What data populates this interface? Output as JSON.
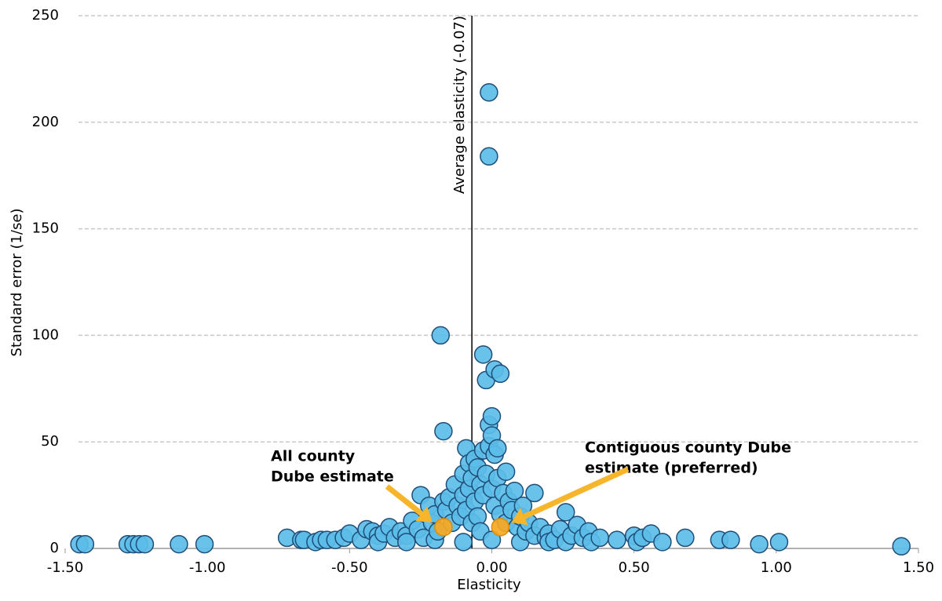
{
  "chart_data": {
    "type": "scatter",
    "x_label": "Elasticity",
    "y_label": "Standard error (1/se)",
    "xlim": [
      -1.5,
      1.5
    ],
    "ylim": [
      0,
      250
    ],
    "xticks": [
      {
        "value": -1.5,
        "label": "-1.50"
      },
      {
        "value": -1,
        "label": "-1.00"
      },
      {
        "value": -0.5,
        "label": "-0.50"
      },
      {
        "value": 0,
        "label": "0.00"
      },
      {
        "value": 0.5,
        "label": "0.50"
      },
      {
        "value": 1,
        "label": "1.00"
      },
      {
        "value": 1.5,
        "label": "1.50"
      }
    ],
    "yticks": [
      0,
      50,
      100,
      150,
      200,
      250
    ],
    "grid": true,
    "reference_line": {
      "value": -0.07,
      "label": "Average elasticity (-0.07)"
    },
    "series": [
      {
        "color": "#5bbde8",
        "x": [
          -1.45,
          -1.43,
          -1.28,
          -1.26,
          -1.24,
          -1.22,
          -1.1,
          -1.01,
          -0.72,
          -0.67,
          -0.66,
          -0.62,
          -0.6,
          -0.58,
          -0.55,
          -0.52,
          -0.5,
          -0.46,
          -0.44,
          -0.42,
          -0.4,
          -0.4,
          -0.38,
          -0.36,
          -0.34,
          -0.32,
          -0.3,
          -0.3,
          -0.28,
          -0.26,
          -0.25,
          -0.24,
          -0.22,
          -0.21,
          -0.2,
          -0.2,
          -0.19,
          -0.18,
          -0.17,
          -0.17,
          -0.16,
          -0.15,
          -0.14,
          -0.13,
          -0.12,
          -0.11,
          -0.1,
          -0.1,
          -0.1,
          -0.09,
          -0.09,
          -0.08,
          -0.08,
          -0.07,
          -0.07,
          -0.06,
          -0.06,
          -0.05,
          -0.05,
          -0.04,
          -0.04,
          -0.03,
          -0.03,
          -0.03,
          -0.02,
          -0.02,
          -0.01,
          -0.01,
          -0.01,
          -0.01,
          0,
          0,
          0,
          0,
          0.01,
          0.01,
          0.01,
          0.02,
          0.02,
          0.03,
          0.03,
          0.04,
          0.05,
          0.05,
          0.06,
          0.07,
          0.08,
          0.09,
          0.1,
          0.1,
          0.11,
          0.12,
          0.13,
          0.15,
          0.15,
          0.17,
          0.19,
          0.2,
          0.2,
          0.22,
          0.24,
          0.26,
          0.26,
          0.28,
          0.3,
          0.32,
          0.34,
          0.35,
          0.38,
          0.44,
          0.5,
          0.51,
          0.53,
          0.56,
          0.6,
          0.68,
          0.8,
          0.84,
          0.94,
          1.01,
          1.44
        ],
        "values": [
          2,
          2,
          2,
          2,
          2,
          2,
          2,
          2,
          5,
          4,
          4,
          3,
          4,
          4,
          4,
          5,
          7,
          4,
          9,
          8,
          6,
          3,
          7,
          10,
          5,
          8,
          6,
          3,
          13,
          9,
          25,
          5,
          20,
          12,
          16,
          4,
          8,
          100,
          55,
          22,
          18,
          24,
          12,
          30,
          20,
          15,
          35,
          25,
          3,
          47,
          18,
          40,
          28,
          33,
          12,
          42,
          22,
          38,
          15,
          30,
          8,
          91,
          46,
          25,
          79,
          35,
          58,
          214,
          184,
          48,
          62,
          53,
          28,
          4,
          84,
          44,
          20,
          47,
          33,
          82,
          16,
          26,
          36,
          12,
          22,
          18,
          27,
          10,
          15,
          3,
          20,
          8,
          12,
          26,
          6,
          10,
          5,
          7,
          3,
          4,
          9,
          17,
          3,
          6,
          11,
          5,
          8,
          3,
          5,
          4,
          6,
          3,
          5,
          7,
          3,
          5,
          4,
          4,
          2,
          3,
          1
        ]
      },
      {
        "color": "#f7a823",
        "x": [
          -0.17,
          0.03
        ],
        "values": [
          10,
          10
        ]
      }
    ],
    "annotations": [
      {
        "lines": [
          "All county",
          "Dube estimate"
        ]
      },
      {
        "lines": [
          "Contiguous county Dube",
          "estimate (preferred)"
        ]
      }
    ]
  }
}
